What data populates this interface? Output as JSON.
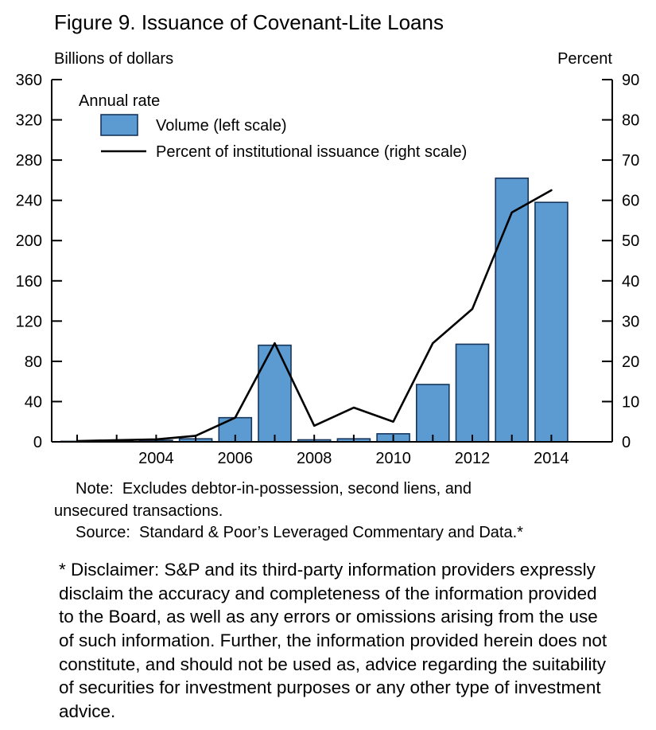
{
  "figure": {
    "title": "Figure 9.  Issuance of Covenant-Lite Loans",
    "left_axis_caption": "Billions of dollars",
    "right_axis_caption": "Percent",
    "note": "Note:  Excludes debtor-in-possession, second liens, and unsecured transactions.",
    "source": "Source:  Standard & Poor’s Leveraged Commentary and Data.*",
    "disclaimer": "* Disclaimer: S&P and its third-party information providers expressly disclaim the accuracy and completeness of the information provided to the Board, as well as any errors or omissions arising from the use of such information. Further, the information provided herein does not constitute, and should not be used as, advice regarding the suitability of securities for investment purposes or any other type of investment advice."
  },
  "chart_data": {
    "type": "bar+line",
    "title": "Figure 9.  Issuance of Covenant-Lite Loans",
    "legend_title": "Annual rate",
    "categories": [
      2002,
      2003,
      2004,
      2005,
      2006,
      2007,
      2008,
      2009,
      2010,
      2011,
      2012,
      2013,
      2014
    ],
    "series": [
      {
        "name": "Volume (left scale)",
        "type": "bar",
        "axis": "left",
        "values": [
          0.5,
          1.5,
          1.5,
          3,
          24,
          96,
          2,
          3,
          8,
          57,
          97,
          262,
          238
        ]
      },
      {
        "name": "Percent of institutional issuance (right scale)",
        "type": "line",
        "axis": "right",
        "values": [
          0.2,
          0.4,
          0.6,
          1.5,
          6,
          24.5,
          4,
          8.5,
          5,
          24.5,
          33,
          57,
          62.5
        ]
      }
    ],
    "left_axis": {
      "label": "Billions of dollars",
      "min": 0,
      "max": 360,
      "tick_step": 40
    },
    "right_axis": {
      "label": "Percent",
      "min": 0,
      "max": 90,
      "tick_step": 10
    },
    "x_tick_labels": [
      "2004",
      "2006",
      "2008",
      "2010",
      "2012",
      "2014"
    ],
    "grid": false,
    "legend_position": "top-left-inside-plot",
    "colors": {
      "bar_fill": "#5b9bd1",
      "bar_stroke": "#16365d",
      "line": "#000000",
      "axis": "#000000"
    }
  }
}
